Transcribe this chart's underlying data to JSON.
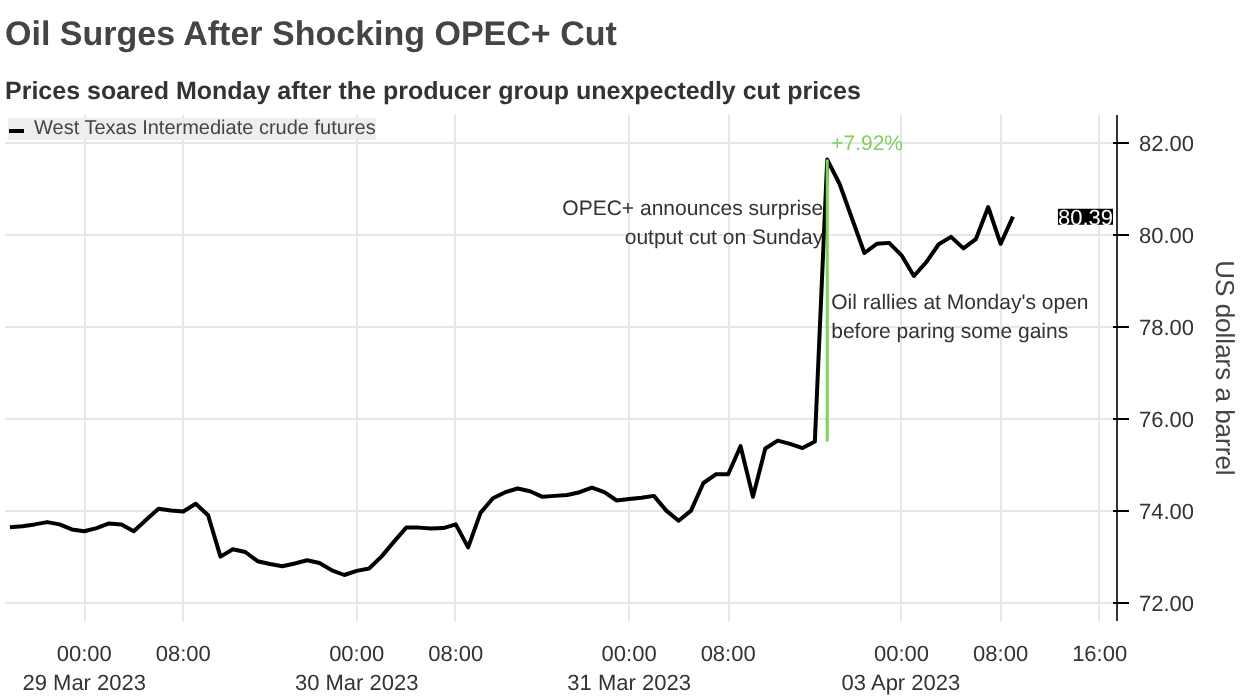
{
  "chart_data": {
    "type": "line",
    "title": "Oil Surges After Shocking OPEC+ Cut",
    "subtitle": "Prices soared Monday after the producer group unexpectedly cut prices",
    "ylabel": "US dollars a barrel",
    "categories": [
      null,
      null,
      null,
      null,
      null,
      null,
      "00:00\n29 Mar 2023",
      null,
      null,
      null,
      null,
      null,
      null,
      null,
      "08:00",
      null,
      null,
      null,
      null,
      null,
      null,
      null,
      null,
      null,
      null,
      null,
      null,
      null,
      "00:00\n30 Mar 2023",
      null,
      null,
      null,
      null,
      null,
      null,
      null,
      "08:00",
      null,
      null,
      null,
      null,
      null,
      null,
      null,
      null,
      null,
      null,
      null,
      null,
      null,
      "00:00\n31 Mar 2023",
      null,
      null,
      null,
      null,
      null,
      null,
      null,
      "08:00",
      null,
      null,
      null,
      null,
      null,
      null,
      null,
      null,
      null,
      null,
      null,
      null,
      null,
      "00:00\n03 Apr 2023",
      null,
      null,
      null,
      null,
      null,
      null,
      null,
      "08:00",
      null,
      null,
      null,
      null,
      null,
      null,
      null,
      "16:00",
      null
    ],
    "series": [
      {
        "name": "West Texas Intermediate crude futures",
        "color": "#000000",
        "values": [
          73.64,
          73.66,
          73.7,
          73.75,
          73.7,
          73.59,
          73.55,
          73.62,
          73.72,
          73.7,
          73.55,
          73.8,
          74.04,
          74.0,
          73.98,
          74.15,
          73.9,
          73.0,
          73.16,
          73.1,
          72.9,
          72.84,
          72.79,
          72.85,
          72.92,
          72.86,
          72.7,
          72.6,
          72.69,
          72.74,
          73.0,
          73.32,
          73.63,
          73.63,
          73.61,
          73.62,
          73.7,
          73.2,
          73.95,
          74.27,
          74.4,
          74.48,
          74.42,
          74.3,
          74.32,
          74.34,
          74.4,
          74.5,
          74.4,
          74.22,
          74.25,
          74.28,
          74.32,
          74.0,
          73.78,
          74.0,
          74.6,
          74.79,
          74.79,
          75.4,
          74.3,
          75.35,
          75.52,
          75.45,
          75.36,
          75.5,
          81.63,
          81.1,
          80.35,
          79.6,
          79.8,
          79.82,
          79.55,
          79.1,
          79.4,
          79.79,
          79.95,
          79.7,
          79.9,
          80.6,
          79.8,
          80.39,
          null,
          null,
          null,
          null,
          null,
          null,
          null,
          null
        ]
      }
    ],
    "ylim": [
      71.6,
      82.6
    ],
    "yticks": [
      {
        "value": 72,
        "label": "72.00"
      },
      {
        "value": 74,
        "label": "74.00"
      },
      {
        "value": 76,
        "label": "76.00"
      },
      {
        "value": 78,
        "label": "78.00"
      },
      {
        "value": 80,
        "label": "80.00"
      },
      {
        "value": 82,
        "label": "82.00"
      }
    ],
    "annotations": [
      "+7.92%",
      "OPEC+ announces surprise\noutput cut on Sunday",
      "Oil rallies at Monday's open\nbefore paring some gains",
      "80.39"
    ],
    "grid": true,
    "legend": "top left"
  }
}
